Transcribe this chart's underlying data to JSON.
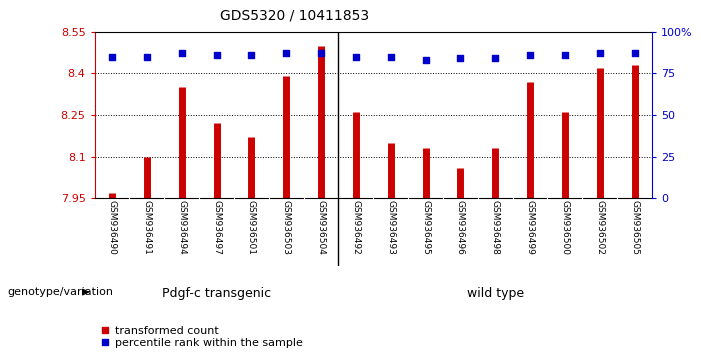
{
  "title": "GDS5320 / 10411853",
  "categories": [
    "GSM936490",
    "GSM936491",
    "GSM936494",
    "GSM936497",
    "GSM936501",
    "GSM936503",
    "GSM936504",
    "GSM936492",
    "GSM936493",
    "GSM936495",
    "GSM936496",
    "GSM936498",
    "GSM936499",
    "GSM936500",
    "GSM936502",
    "GSM936505"
  ],
  "bar_values": [
    7.97,
    8.1,
    8.35,
    8.22,
    8.17,
    8.39,
    8.5,
    8.26,
    8.15,
    8.13,
    8.06,
    8.13,
    8.37,
    8.26,
    8.42,
    8.43
  ],
  "percentile_values": [
    85,
    85,
    87,
    86,
    86,
    87,
    87,
    85,
    85,
    83,
    84,
    84,
    86,
    86,
    87,
    87
  ],
  "bar_color": "#cc0000",
  "percentile_color": "#0000cc",
  "ylim_left": [
    7.95,
    8.55
  ],
  "ylim_right": [
    0,
    100
  ],
  "yticks_left": [
    7.95,
    8.1,
    8.25,
    8.4,
    8.55
  ],
  "yticks_right": [
    0,
    25,
    50,
    75,
    100
  ],
  "ytick_labels_right": [
    "0",
    "25",
    "50",
    "75",
    "100%"
  ],
  "gridlines": [
    8.1,
    8.25,
    8.4
  ],
  "group1_label": "Pdgf-c transgenic",
  "group2_label": "wild type",
  "group1_color": "#99ff99",
  "group2_color": "#33cc33",
  "group1_count": 7,
  "group2_count": 9,
  "genotype_label": "genotype/variation",
  "legend_bar_label": "transformed count",
  "legend_pct_label": "percentile rank within the sample",
  "background_color": "#ffffff",
  "tick_area_color": "#c8c8c8"
}
